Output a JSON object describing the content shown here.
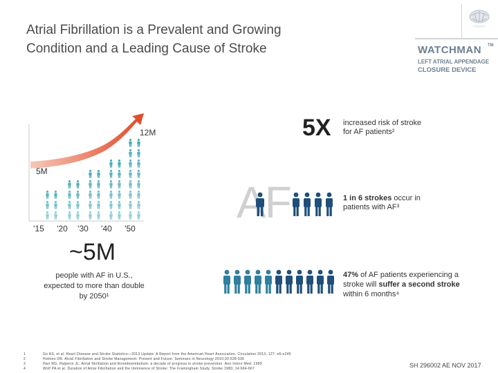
{
  "title": {
    "line1": "Atrial Fibrillation is a Prevalent and Growing",
    "line2": "Condition and a Leading Cause of Stroke"
  },
  "brand": {
    "name": "WATCHMAN",
    "tm": "TM",
    "subtitle1": "LEFT ATRIAL APPENDAGE",
    "subtitle2": "CLOSURE DEVICE"
  },
  "chart_data": {
    "type": "bar",
    "categories": [
      "'15",
      "'20",
      "'30",
      "'40",
      "'50"
    ],
    "annotations": [
      "5M",
      "12M"
    ],
    "accent": "#3fa7b5",
    "arrow_colors": [
      "#f6c9b8",
      "#e04727"
    ]
  },
  "prevalence": {
    "headline": "~5M",
    "line1": "people with AF in U.S.,",
    "line2": "expected to more than double",
    "line3": "by 2050¹"
  },
  "risk": {
    "headline": "5X",
    "line1": "increased risk of stroke",
    "line2": "for AF patients²"
  },
  "af_graphic": {
    "letters": "AF",
    "highlight_color": "#2f7fa0",
    "pre": "1 in 6 strokes",
    "line1_rest": " occur in",
    "line2": "patients with AF³"
  },
  "second_stroke": {
    "pct": "47%",
    "line1_rest": " of AF patients experiencing a",
    "line2_pre": "stroke will ",
    "line2_bold": "suffer a second stroke",
    "line3": "within 6 months⁴"
  },
  "footnotes": [
    {
      "num": "1",
      "text": "Go AS, et al. Heart Disease and Stroke Statistics—2013 Update: A Report from the American Heart Association. Circulation 2013; 127: e6-e245"
    },
    {
      "num": "2",
      "text": "Holmes DR. Atrial Fibrillation and Stroke Management: Present and Future. Seminars in Neurology 2010;30:528-536"
    },
    {
      "num": "3",
      "text": "Hart RG, Halperin JL. Atrial fibrillation and thromboembolism: a decade of progress in stroke prevention. Ann Intern Med. 1999"
    },
    {
      "num": "4",
      "text": "Wolf PA et al. Duration of Atrial Fibrillation and the Imminence of Stroke: The Framingham Study. Stroke 1983; 14:664-667"
    }
  ],
  "job_code": "SH 296002 AE NOV 2017"
}
